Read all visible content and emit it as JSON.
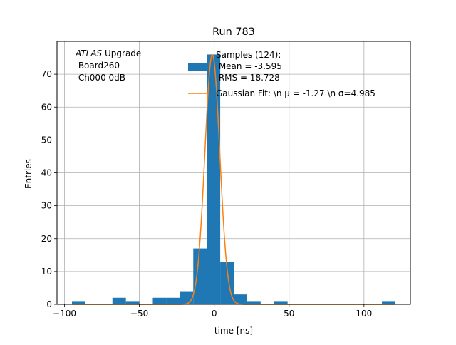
{
  "chart_data": {
    "type": "bar",
    "title": "Run 783",
    "xlabel": "time [ns]",
    "ylabel": "Entries",
    "xlim": [
      -105.0,
      131.0
    ],
    "ylim": [
      0,
      80
    ],
    "xticks": [
      -100,
      -50,
      0,
      50,
      100
    ],
    "yticks": [
      0,
      10,
      20,
      30,
      40,
      50,
      60,
      70
    ],
    "grid": true,
    "annotation": {
      "italic": "ATLAS",
      "rest": " Upgrade",
      "line2": " Board260",
      "line3": " Ch000 0dB"
    },
    "legend": {
      "placement": "top-right",
      "hist_lines": [
        "Samples (124):",
        " Mean = -3.595",
        " RMS = 18.728"
      ],
      "fit_label": "Gaussian Fit: \\n μ = -1.27 \\n σ=4.985"
    },
    "histogram": {
      "name": "Samples (124):",
      "bin_width": 9.0,
      "bins": [
        {
          "left": -95.0,
          "count": 1
        },
        {
          "left": -68.0,
          "count": 2
        },
        {
          "left": -59.0,
          "count": 1
        },
        {
          "left": -41.0,
          "count": 2
        },
        {
          "left": -32.0,
          "count": 2
        },
        {
          "left": -23.0,
          "count": 4
        },
        {
          "left": -14.0,
          "count": 17
        },
        {
          "left": -5.0,
          "count": 76
        },
        {
          "left": 4.0,
          "count": 13
        },
        {
          "left": 13.0,
          "count": 3
        },
        {
          "left": 22.0,
          "count": 1
        },
        {
          "left": 40.0,
          "count": 1
        },
        {
          "left": 112.0,
          "count": 1
        }
      ]
    },
    "fit": {
      "name": "Gaussian Fit",
      "mu": -1.27,
      "sigma": 4.985,
      "amplitude": 76,
      "x_range": [
        -95.0,
        121.0
      ]
    },
    "colors": {
      "hist": "#1f77b4",
      "fit": "#ff7f0e",
      "grid": "#b0b0b0"
    }
  }
}
